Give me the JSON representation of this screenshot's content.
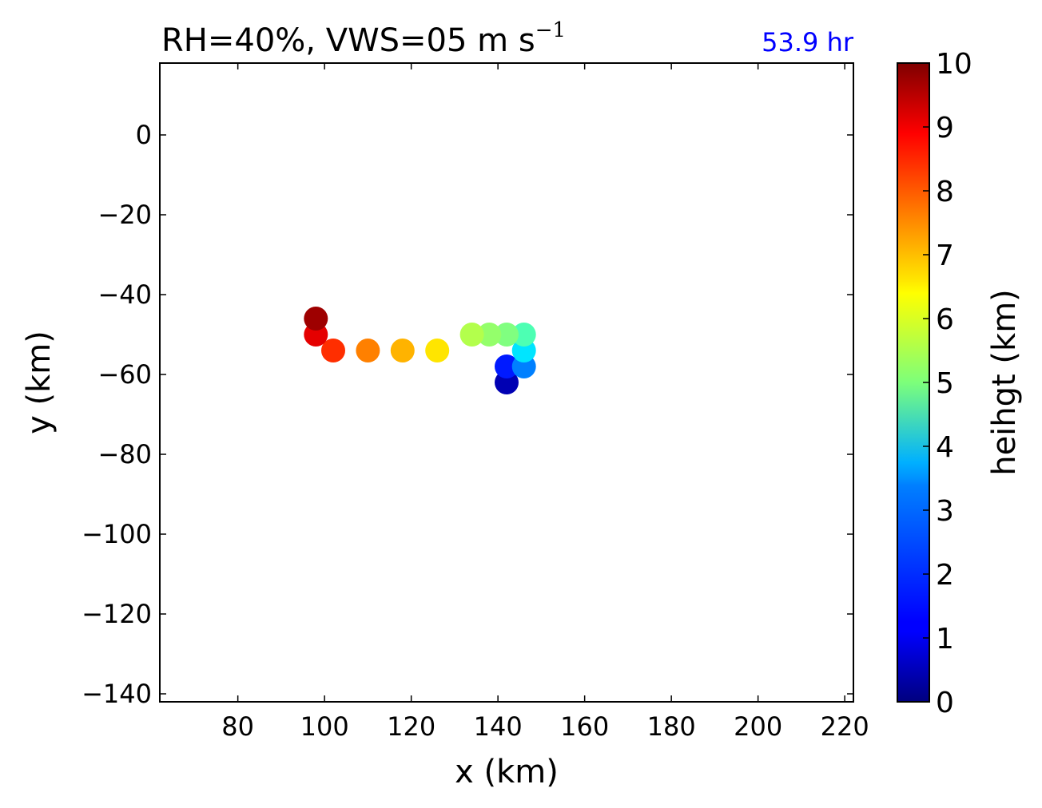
{
  "chart_data": {
    "type": "scatter",
    "title_main": "RH=40%, VWS=05 m s",
    "title_sup": "−1",
    "time_label": "53.9 hr",
    "xlabel": "x (km)",
    "ylabel": "y (km)",
    "xlim": [
      62,
      222
    ],
    "ylim": [
      -142,
      18
    ],
    "xticks": [
      80,
      100,
      120,
      140,
      160,
      180,
      200,
      220
    ],
    "yticks": [
      0,
      -20,
      -40,
      -60,
      -80,
      -100,
      -120,
      -140
    ],
    "xtick_labels": [
      "80",
      "100",
      "120",
      "140",
      "160",
      "180",
      "200",
      "220"
    ],
    "ytick_labels": [
      "0",
      "−20",
      "−40",
      "−60",
      "−80",
      "−100",
      "−120",
      "−140"
    ],
    "colorbar": {
      "label": "heihgt (km)",
      "range": [
        0,
        10
      ],
      "colormap": "jet",
      "ticks": [
        "0",
        "1",
        "2",
        "3",
        "4",
        "5",
        "6",
        "7",
        "8",
        "9",
        "10"
      ]
    },
    "points": [
      {
        "x": 142,
        "y": -62,
        "height": 0.5
      },
      {
        "x": 142,
        "y": -58,
        "height": 1.5
      },
      {
        "x": 146,
        "y": -58,
        "height": 2.5
      },
      {
        "x": 146,
        "y": -54,
        "height": 3.5
      },
      {
        "x": 146,
        "y": -50,
        "height": 4.5
      },
      {
        "x": 142,
        "y": -50,
        "height": 5.0
      },
      {
        "x": 138,
        "y": -50,
        "height": 5.2
      },
      {
        "x": 134,
        "y": -50,
        "height": 5.5
      },
      {
        "x": 126,
        "y": -54,
        "height": 6.5
      },
      {
        "x": 118,
        "y": -54,
        "height": 7.0
      },
      {
        "x": 110,
        "y": -54,
        "height": 7.5
      },
      {
        "x": 102,
        "y": -54,
        "height": 8.3
      },
      {
        "x": 98,
        "y": -50,
        "height": 9.0
      },
      {
        "x": 98,
        "y": -46,
        "height": 9.7
      }
    ],
    "grid": false
  }
}
